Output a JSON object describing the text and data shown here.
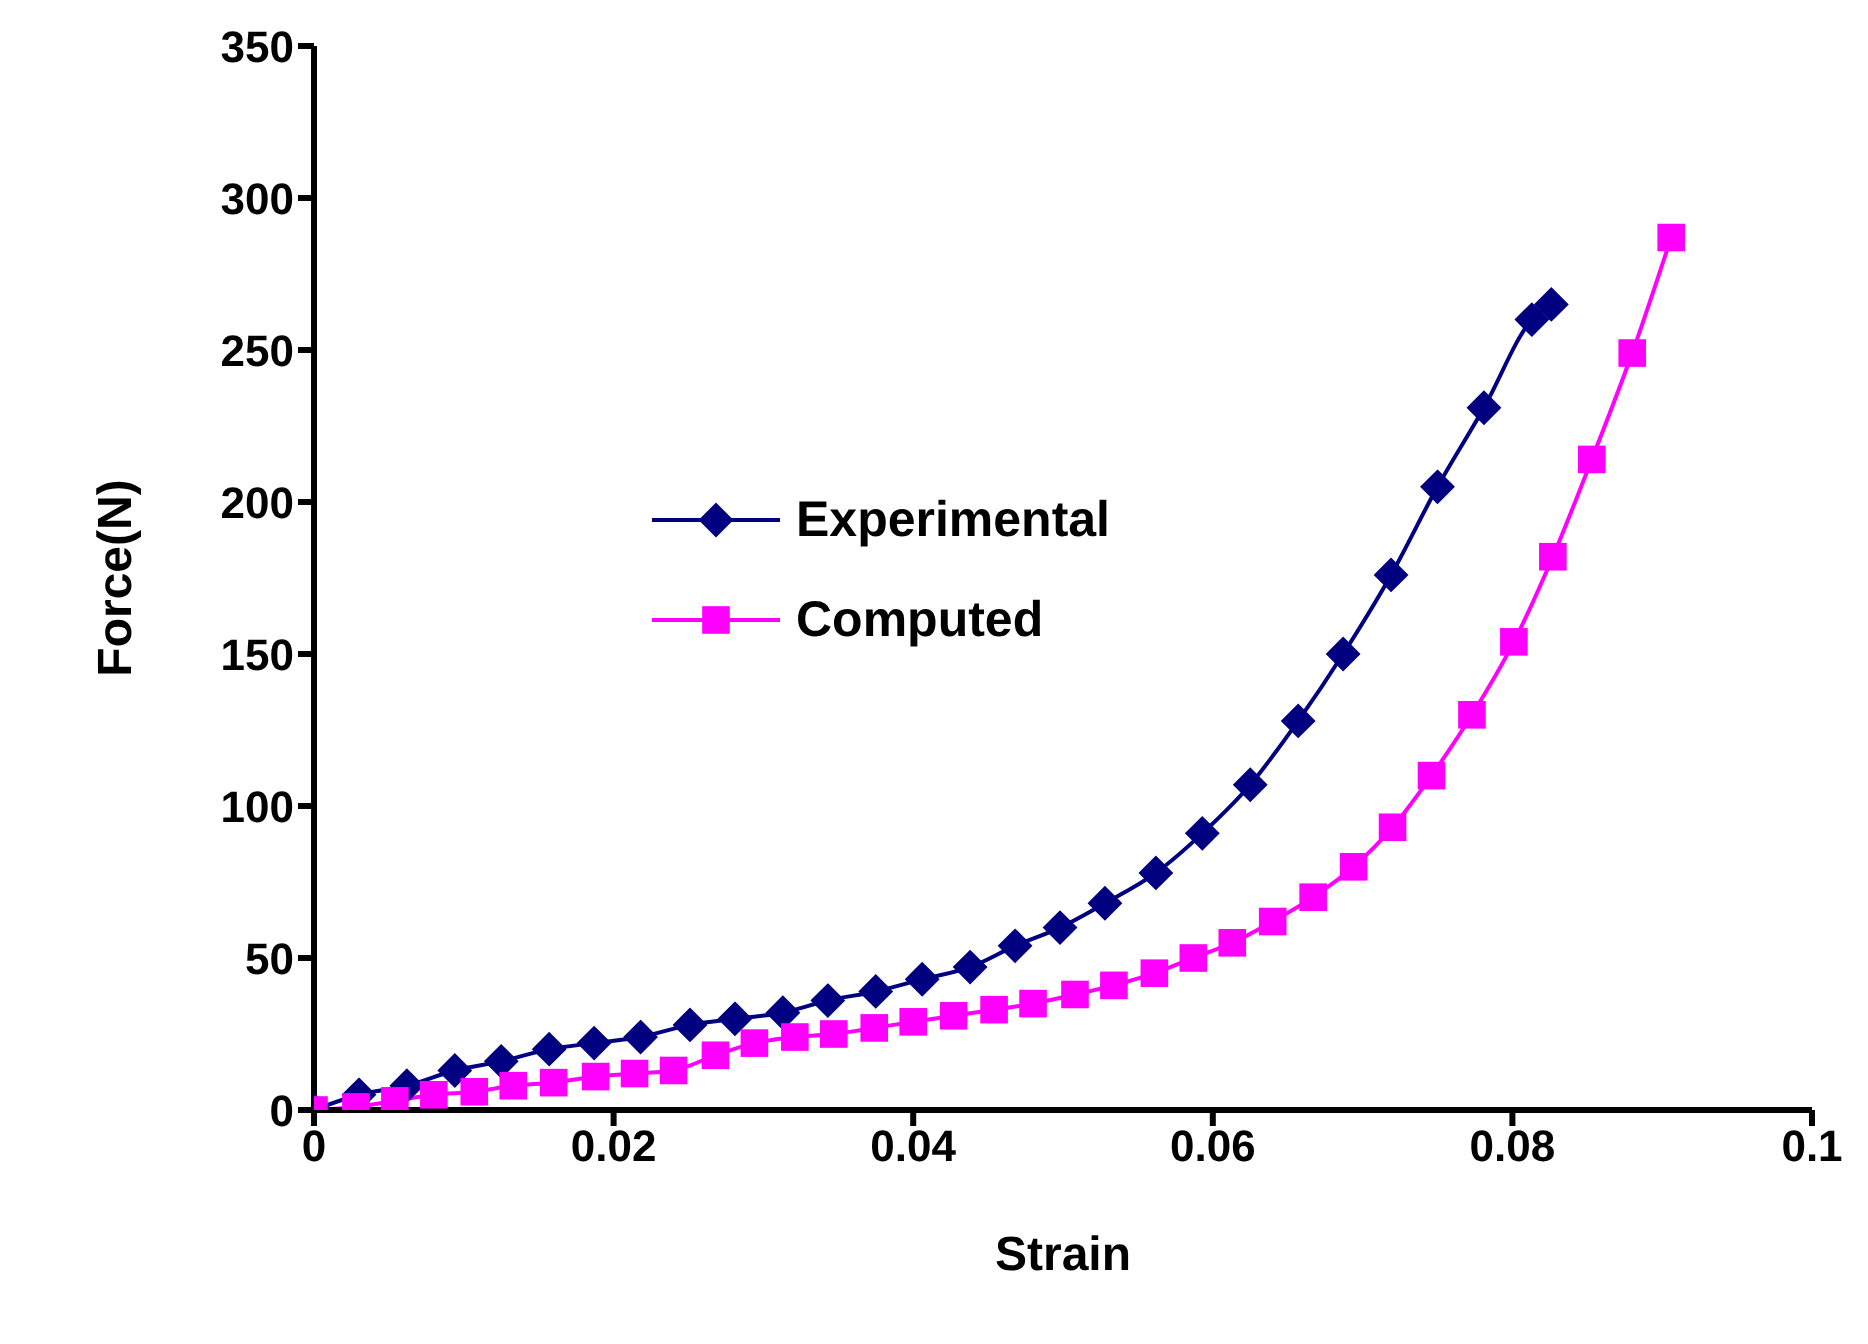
{
  "chart_data": {
    "type": "line",
    "xlabel": "Strain",
    "ylabel": "Force(N)",
    "xlim": [
      0,
      0.1
    ],
    "xticks": [
      0,
      0.02,
      0.04,
      0.06,
      0.08,
      0.1
    ],
    "ylim": [
      0,
      350
    ],
    "yticks": [
      0,
      50,
      100,
      150,
      200,
      250,
      300,
      350
    ],
    "grid": false,
    "legend": "center",
    "line_style": "solid",
    "series": [
      {
        "name": "Experimental",
        "color": "#000080",
        "marker": "diamond",
        "x": [
          0,
          0.003,
          0.0062,
          0.0094,
          0.0125,
          0.0157,
          0.0187,
          0.0218,
          0.0251,
          0.0281,
          0.0313,
          0.0343,
          0.0375,
          0.0406,
          0.0438,
          0.0468,
          0.0498,
          0.0528,
          0.0562,
          0.0593,
          0.0625,
          0.0657,
          0.0687,
          0.0719,
          0.075,
          0.0781,
          0.0813,
          0.0826
        ],
        "values": [
          0,
          5,
          8,
          13,
          16,
          20,
          22,
          24,
          28,
          30,
          32,
          36,
          39,
          43,
          47,
          54,
          60,
          68,
          78,
          91,
          107,
          128,
          150,
          176,
          205,
          231,
          260,
          265
        ]
      },
      {
        "name": "Computed",
        "color": "#ff00ff",
        "marker": "square",
        "x": [
          0,
          0.0028,
          0.0054,
          0.008,
          0.0107,
          0.0133,
          0.016,
          0.0188,
          0.0214,
          0.024,
          0.0268,
          0.0294,
          0.0321,
          0.0347,
          0.0374,
          0.04,
          0.0427,
          0.0454,
          0.048,
          0.0508,
          0.0534,
          0.0561,
          0.0587,
          0.0613,
          0.064,
          0.0667,
          0.0694,
          0.072,
          0.0746,
          0.0773,
          0.0801,
          0.0827,
          0.0853,
          0.088,
          0.0906
        ],
        "values": [
          0,
          1,
          3,
          5,
          6,
          8,
          9,
          11,
          12,
          13,
          18,
          22,
          24,
          25,
          27,
          29,
          31,
          33,
          35,
          38,
          41,
          45,
          50,
          55,
          62,
          70,
          80,
          93,
          110,
          130,
          154,
          182,
          214,
          249,
          287
        ]
      }
    ]
  }
}
